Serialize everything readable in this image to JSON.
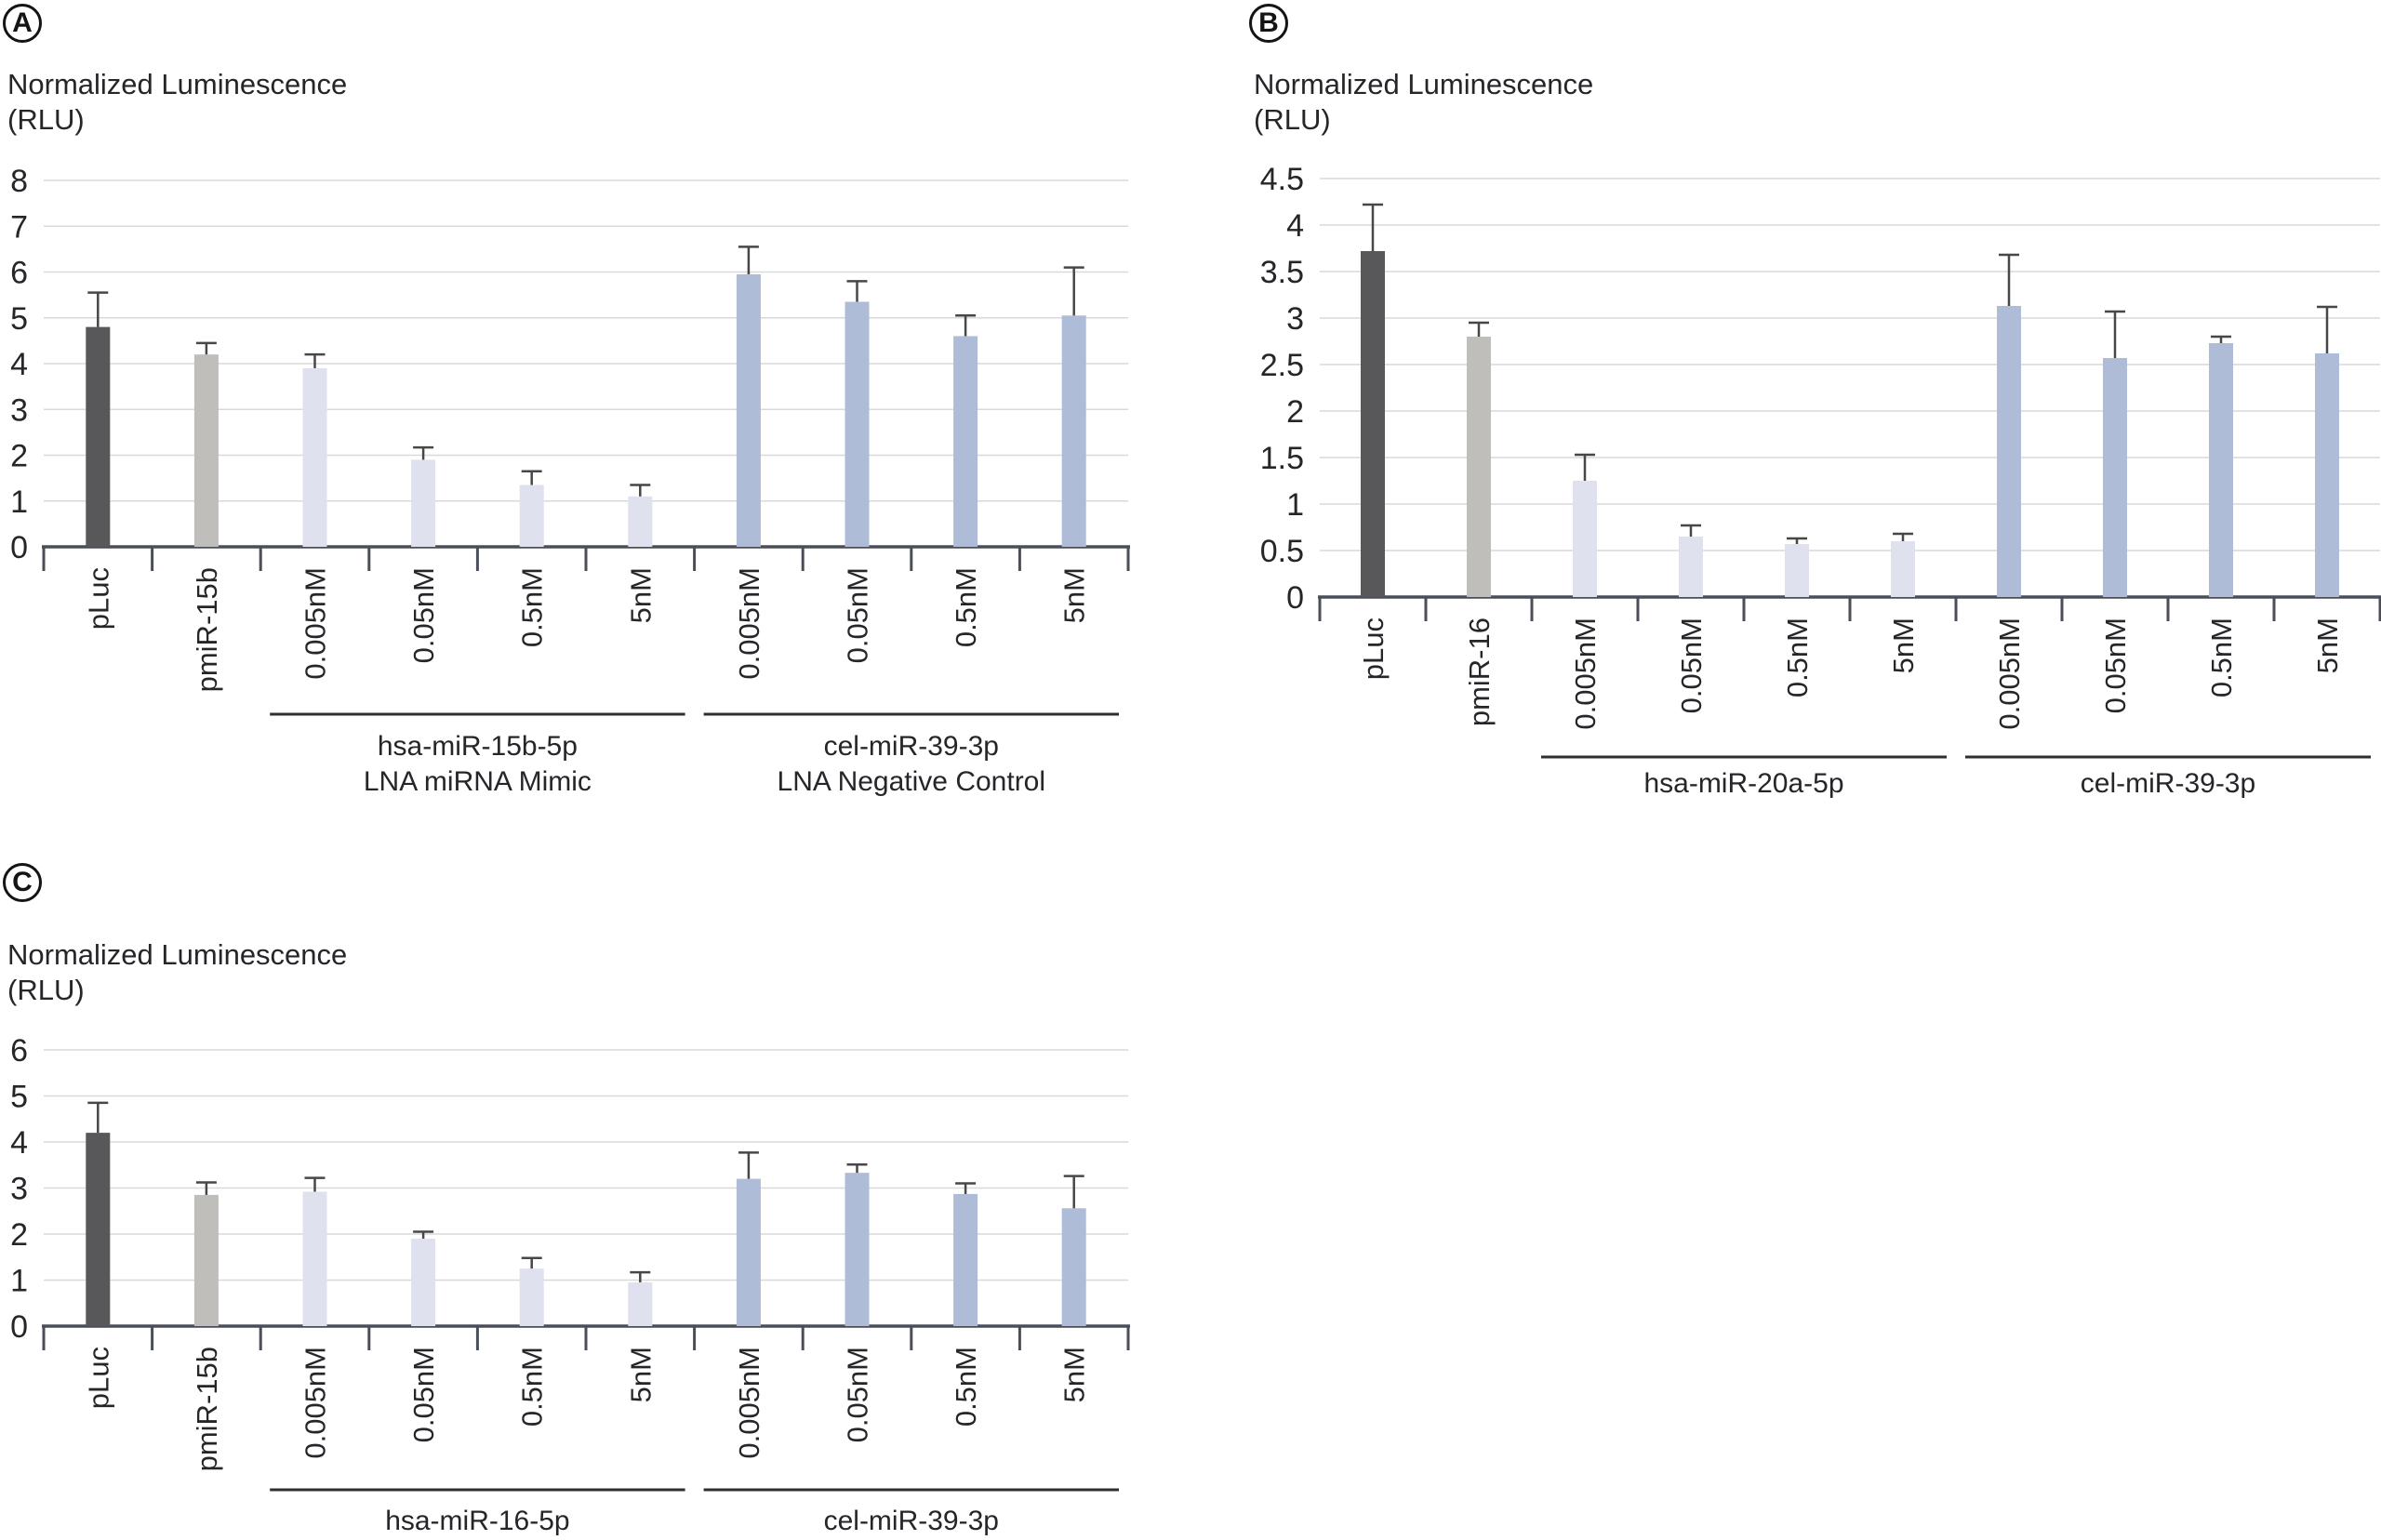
{
  "figure": {
    "background": "#ffffff"
  },
  "colors": {
    "grid": "#d9d9d9",
    "axis": "#4a4e59",
    "error": "#474747",
    "text": "#26262a",
    "group_line": "#2f2f33",
    "roles": {
      "control_dark": "#58585a",
      "reference_gray": "#c0beba",
      "mimic_light": "#dfe2ee",
      "neg_control_blue": "#aebcd8"
    }
  },
  "panels": [
    {
      "id": "A",
      "label": "A",
      "title_line1": "Normalized Luminescence",
      "title_line2": "(RLU)",
      "chart_data": {
        "type": "bar",
        "ylim": [
          0,
          8
        ],
        "yticks": [
          0,
          1,
          2,
          3,
          4,
          5,
          6,
          7,
          8
        ],
        "ytick_labels": [
          "0",
          "1",
          "2",
          "3",
          "4",
          "5",
          "6",
          "7",
          "8"
        ],
        "grid": true,
        "categories": [
          "pLuc",
          "pmiR-15b",
          "0.005nM",
          "0.05nM",
          "0.5nM",
          "5nM",
          "0.005nM",
          "0.05nM",
          "0.5nM",
          "5nM"
        ],
        "values": [
          4.8,
          4.2,
          3.9,
          1.9,
          1.35,
          1.1,
          5.95,
          5.35,
          4.6,
          5.05
        ],
        "errors": [
          0.75,
          0.25,
          0.3,
          0.27,
          0.3,
          0.25,
          0.6,
          0.45,
          0.45,
          1.05
        ],
        "bar_roles": [
          "control_dark",
          "reference_gray",
          "mimic_light",
          "mimic_light",
          "mimic_light",
          "mimic_light",
          "neg_control_blue",
          "neg_control_blue",
          "neg_control_blue",
          "neg_control_blue"
        ],
        "groups": [
          {
            "label_lines": [
              "hsa-miR-15b-5p",
              "LNA miRNA Mimic"
            ],
            "from": 2,
            "to": 5
          },
          {
            "label_lines": [
              "cel-miR-39-3p",
              "LNA Negative Control"
            ],
            "from": 6,
            "to": 9
          }
        ]
      }
    },
    {
      "id": "B",
      "label": "B",
      "title_line1": "Normalized Luminescence",
      "title_line2": "(RLU)",
      "chart_data": {
        "type": "bar",
        "ylim": [
          0,
          4.5
        ],
        "yticks": [
          0,
          0.5,
          1,
          1.5,
          2,
          2.5,
          3,
          3.5,
          4,
          4.5
        ],
        "ytick_labels": [
          "0",
          "0.5",
          "1",
          "1.5",
          "2",
          "2.5",
          "3",
          "3.5",
          "4",
          "4.5"
        ],
        "grid": true,
        "categories": [
          "pLuc",
          "pmiR-16",
          "0.005nM",
          "0.05nM",
          "0.5nM",
          "5nM",
          "0.005nM",
          "0.05nM",
          "0.5nM",
          "5nM"
        ],
        "values": [
          3.72,
          2.8,
          1.25,
          0.65,
          0.57,
          0.6,
          3.13,
          2.57,
          2.73,
          2.62
        ],
        "errors": [
          0.5,
          0.15,
          0.28,
          0.12,
          0.06,
          0.08,
          0.55,
          0.5,
          0.07,
          0.5
        ],
        "bar_roles": [
          "control_dark",
          "reference_gray",
          "mimic_light",
          "mimic_light",
          "mimic_light",
          "mimic_light",
          "neg_control_blue",
          "neg_control_blue",
          "neg_control_blue",
          "neg_control_blue"
        ],
        "groups": [
          {
            "label_lines": [
              "hsa-miR-20a-5p"
            ],
            "from": 2,
            "to": 5
          },
          {
            "label_lines": [
              "cel-miR-39-3p"
            ],
            "from": 6,
            "to": 9
          }
        ]
      }
    },
    {
      "id": "C",
      "label": "C",
      "title_line1": "Normalized Luminescence",
      "title_line2": "(RLU)",
      "chart_data": {
        "type": "bar",
        "ylim": [
          0,
          6
        ],
        "yticks": [
          0,
          1,
          2,
          3,
          4,
          5,
          6
        ],
        "ytick_labels": [
          "0",
          "1",
          "2",
          "3",
          "4",
          "5",
          "6"
        ],
        "grid": true,
        "categories": [
          "pLuc",
          "pmiR-15b",
          "0.005nM",
          "0.05nM",
          "0.5nM",
          "5nM",
          "0.005nM",
          "0.05nM",
          "0.5nM",
          "5nM"
        ],
        "values": [
          4.2,
          2.85,
          2.92,
          1.9,
          1.25,
          0.95,
          3.2,
          3.33,
          2.87,
          2.56
        ],
        "errors": [
          0.65,
          0.27,
          0.3,
          0.15,
          0.23,
          0.22,
          0.57,
          0.18,
          0.23,
          0.7
        ],
        "bar_roles": [
          "control_dark",
          "reference_gray",
          "mimic_light",
          "mimic_light",
          "mimic_light",
          "mimic_light",
          "neg_control_blue",
          "neg_control_blue",
          "neg_control_blue",
          "neg_control_blue"
        ],
        "groups": [
          {
            "label_lines": [
              "hsa-miR-16-5p"
            ],
            "from": 2,
            "to": 5
          },
          {
            "label_lines": [
              "cel-miR-39-3p"
            ],
            "from": 6,
            "to": 9
          }
        ]
      }
    }
  ]
}
